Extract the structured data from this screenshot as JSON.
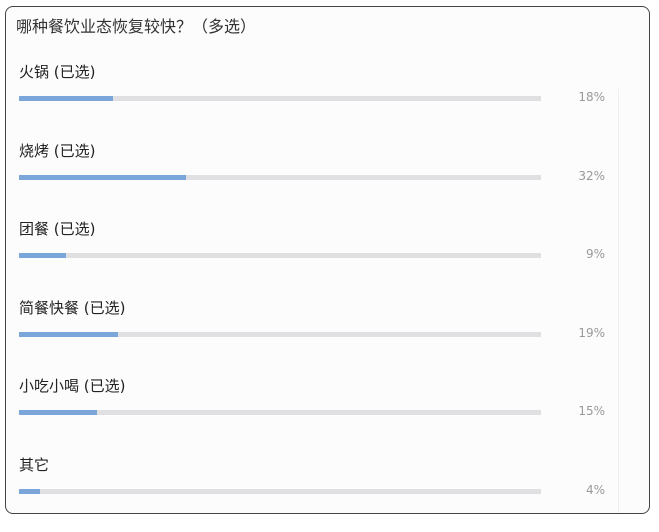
{
  "question": {
    "title": "哪种餐饮业态恢复较快？（多选）"
  },
  "accent_color": "#7aa6da",
  "options": [
    {
      "label": "火锅 (已选)",
      "percent_label": "18%",
      "percent": 18
    },
    {
      "label": "烧烤 (已选)",
      "percent_label": "32%",
      "percent": 32
    },
    {
      "label": "团餐 (已选)",
      "percent_label": "9%",
      "percent": 9
    },
    {
      "label": "简餐快餐 (已选)",
      "percent_label": "19%",
      "percent": 19
    },
    {
      "label": "小吃小喝 (已选)",
      "percent_label": "15%",
      "percent": 15
    },
    {
      "label": "其它",
      "percent_label": "4%",
      "percent": 4
    }
  ]
}
